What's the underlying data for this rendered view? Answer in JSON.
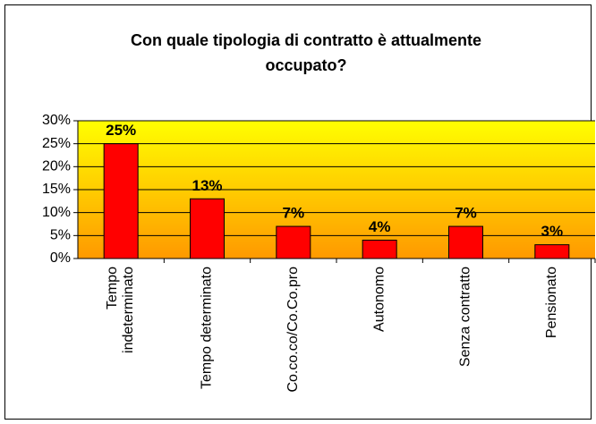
{
  "chart_data": {
    "type": "bar",
    "title": "Con quale tipologia di contratto è attualmente occupato?",
    "categories": [
      "Tempo indeterminato",
      "Tempo determinato",
      "Co.co.co/Co.Co.pro",
      "Autonomo",
      "Senza contratto",
      "Pensionato"
    ],
    "values": [
      25,
      13,
      7,
      4,
      7,
      3
    ],
    "value_labels": [
      "25%",
      "13%",
      "7%",
      "4%",
      "7%",
      "3%"
    ],
    "color": "#ff0000",
    "ylim": [
      0,
      30
    ],
    "yticks": [
      {
        "value": 0,
        "label": "0%"
      },
      {
        "value": 5,
        "label": "5%"
      },
      {
        "value": 10,
        "label": "10%"
      },
      {
        "value": 15,
        "label": "15%"
      },
      {
        "value": 20,
        "label": "20%"
      },
      {
        "value": 25,
        "label": "25%"
      },
      {
        "value": 30,
        "label": "30%"
      }
    ],
    "grid": true
  }
}
